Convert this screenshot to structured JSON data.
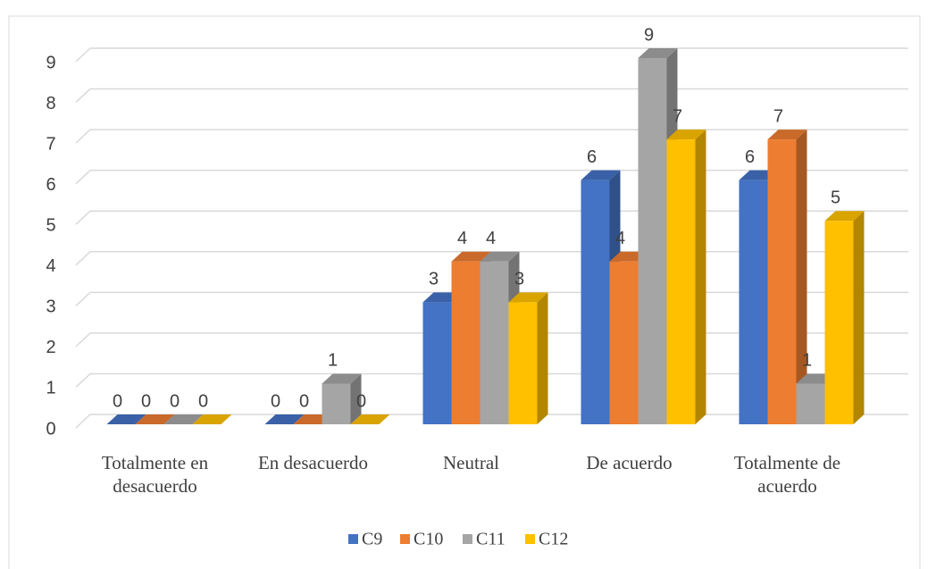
{
  "chart_data": {
    "type": "bar3d",
    "categories": [
      "Totalmente en desacuerdo",
      "En desacuerdo",
      "Neutral",
      "De acuerdo",
      "Totalmente de acuerdo"
    ],
    "series": [
      {
        "name": "C9",
        "color": "#4472c4",
        "values": [
          0,
          0,
          3,
          6,
          6
        ]
      },
      {
        "name": "C10",
        "color": "#ed7d31",
        "values": [
          0,
          0,
          4,
          4,
          7
        ]
      },
      {
        "name": "C11",
        "color": "#a5a5a5",
        "values": [
          0,
          1,
          4,
          9,
          1
        ]
      },
      {
        "name": "C12",
        "color": "#ffc000",
        "values": [
          0,
          0,
          3,
          7,
          5
        ]
      }
    ],
    "ylim": [
      0,
      9
    ],
    "yticks": [
      0,
      1,
      2,
      3,
      4,
      5,
      6,
      7,
      8,
      9
    ],
    "grid": true,
    "legend": "bottom"
  }
}
